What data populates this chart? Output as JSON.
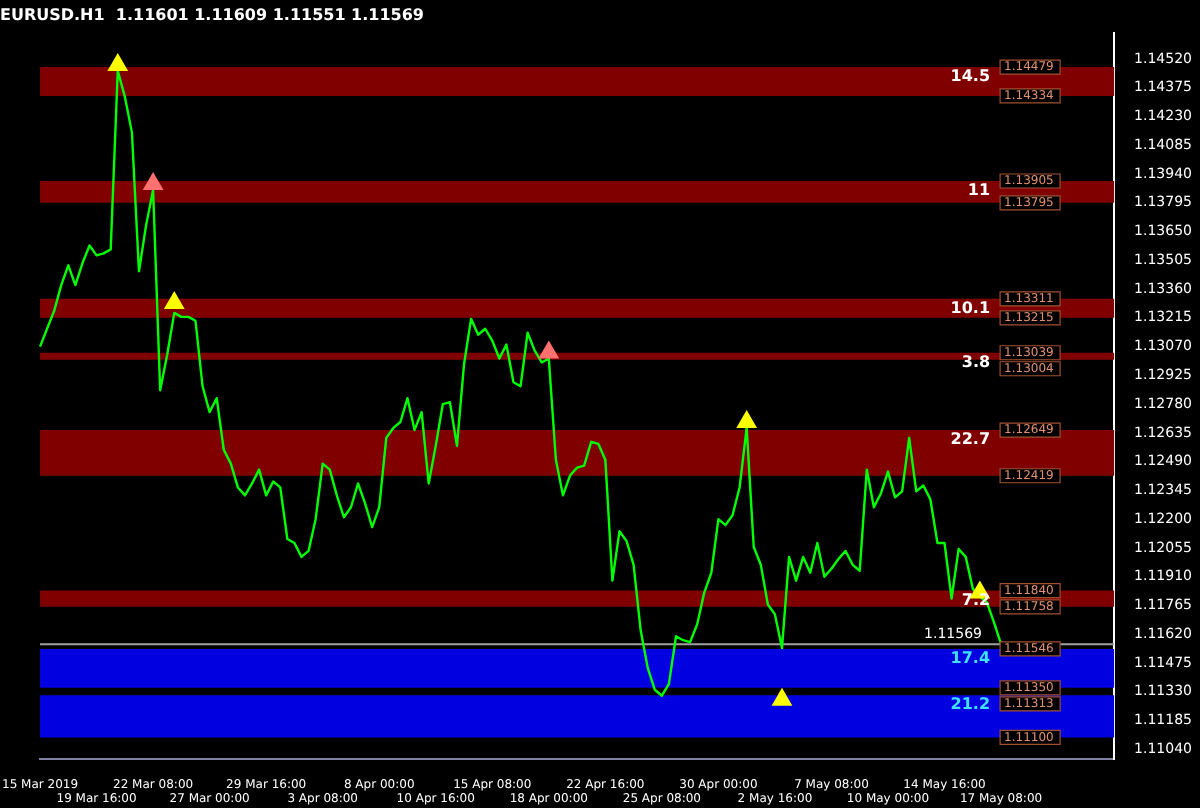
{
  "chart_data": {
    "type": "line",
    "title": "EURUSD.H1  1.11601 1.11609 1.11551 1.11569",
    "grid": false,
    "legend": false,
    "marker": "none",
    "line_style": "solid",
    "categories": [
      "15 Mar 2019",
      null,
      null,
      null,
      null,
      null,
      null,
      null,
      "19 Mar 16:00",
      null,
      null,
      null,
      null,
      null,
      null,
      null,
      "22 Mar 08:00",
      null,
      null,
      null,
      null,
      null,
      null,
      null,
      "27 Mar 00:00",
      null,
      null,
      null,
      null,
      null,
      null,
      null,
      "29 Mar 16:00",
      null,
      null,
      null,
      null,
      null,
      null,
      null,
      "3 Apr 08:00",
      null,
      null,
      null,
      null,
      null,
      null,
      null,
      "8 Apr 00:00",
      null,
      null,
      null,
      null,
      null,
      null,
      null,
      "10 Apr 16:00",
      null,
      null,
      null,
      null,
      null,
      null,
      null,
      "15 Apr 08:00",
      null,
      null,
      null,
      null,
      null,
      null,
      null,
      "18 Apr 00:00",
      null,
      null,
      null,
      null,
      null,
      null,
      null,
      "22 Apr 16:00",
      null,
      null,
      null,
      null,
      null,
      null,
      null,
      "25 Apr 08:00",
      null,
      null,
      null,
      null,
      null,
      null,
      null,
      "30 Apr 00:00",
      null,
      null,
      null,
      null,
      null,
      null,
      null,
      "2 May 16:00",
      null,
      null,
      null,
      null,
      null,
      null,
      null,
      "7 May 08:00",
      null,
      null,
      null,
      null,
      null,
      null,
      null,
      "10 May 00:00",
      null,
      null,
      null,
      null,
      null,
      null,
      null,
      "14 May 16:00",
      null,
      null,
      null,
      null,
      null,
      null,
      null,
      "17 May 08:00",
      null,
      null,
      null,
      null,
      null,
      null,
      null,
      null,
      null,
      null,
      null,
      null,
      null,
      null,
      null,
      null
    ],
    "ylim": [
      1.1099,
      1.1465
    ],
    "yticks": [
      {
        "value": 1.1104,
        "label": "1.11040"
      },
      {
        "value": 1.11185,
        "label": "1.11185"
      },
      {
        "value": 1.1133,
        "label": "1.11330"
      },
      {
        "value": 1.11475,
        "label": "1.11475"
      },
      {
        "value": 1.1162,
        "label": "1.11620"
      },
      {
        "value": 1.11765,
        "label": "1.11765"
      },
      {
        "value": 1.1191,
        "label": "1.11910"
      },
      {
        "value": 1.12055,
        "label": "1.12055"
      },
      {
        "value": 1.122,
        "label": "1.12200"
      },
      {
        "value": 1.12345,
        "label": "1.12345"
      },
      {
        "value": 1.1249,
        "label": "1.12490"
      },
      {
        "value": 1.12635,
        "label": "1.12635"
      },
      {
        "value": 1.1278,
        "label": "1.12780"
      },
      {
        "value": 1.12925,
        "label": "1.12925"
      },
      {
        "value": 1.1307,
        "label": "1.13070"
      },
      {
        "value": 1.13215,
        "label": "1.13215"
      },
      {
        "value": 1.1336,
        "label": "1.13360"
      },
      {
        "value": 1.13505,
        "label": "1.13505"
      },
      {
        "value": 1.1365,
        "label": "1.13650"
      },
      {
        "value": 1.13795,
        "label": "1.13795"
      },
      {
        "value": 1.1394,
        "label": "1.13940"
      },
      {
        "value": 1.14085,
        "label": "1.14085"
      },
      {
        "value": 1.1423,
        "label": "1.14230"
      },
      {
        "value": 1.14375,
        "label": "1.14375"
      },
      {
        "value": 1.1452,
        "label": "1.14520"
      }
    ],
    "bands": [
      {
        "axis": "y",
        "from": 1.14334,
        "to": 1.14479,
        "label": "14.5",
        "color": "#800000"
      },
      {
        "axis": "y",
        "from": 1.13795,
        "to": 1.13905,
        "label": "11",
        "color": "#800000"
      },
      {
        "axis": "y",
        "from": 1.13215,
        "to": 1.13311,
        "label": "10.1",
        "color": "#800000"
      },
      {
        "axis": "y",
        "from": 1.13004,
        "to": 1.13039,
        "label": "3.8",
        "color": "#800000"
      },
      {
        "axis": "y",
        "from": 1.12419,
        "to": 1.12649,
        "label": "22.7",
        "color": "#800000"
      },
      {
        "axis": "y",
        "from": 1.11758,
        "to": 1.1184,
        "label": "7.2",
        "color": "#800000"
      },
      {
        "axis": "y",
        "from": 1.1135,
        "to": 1.11546,
        "label": "17.4",
        "color": "#0000e0"
      },
      {
        "axis": "y",
        "from": 1.111,
        "to": 1.11313,
        "label": "21.2",
        "color": "#0000e0"
      }
    ],
    "ref_lines": [
      {
        "axis": "y",
        "value": 1.11569,
        "label": "1.11569",
        "color": "#a0a0a0"
      }
    ],
    "annotations": [
      {
        "text": "1.14479",
        "y": 1.14479
      },
      {
        "text": "1.14334",
        "y": 1.14334
      },
      {
        "text": "1.13905",
        "y": 1.13905
      },
      {
        "text": "1.13795",
        "y": 1.13795
      },
      {
        "text": "1.13311",
        "y": 1.13311
      },
      {
        "text": "1.13215",
        "y": 1.13215
      },
      {
        "text": "1.13039",
        "y": 1.13039
      },
      {
        "text": "1.13004",
        "y": 1.13004
      },
      {
        "text": "1.12649",
        "y": 1.12649
      },
      {
        "text": "1.12419",
        "y": 1.12419
      },
      {
        "text": "1.11840",
        "y": 1.1184
      },
      {
        "text": "1.11758",
        "y": 1.11758
      },
      {
        "text": "1.11546",
        "y": 1.11546
      },
      {
        "text": "1.11350",
        "y": 1.1135
      },
      {
        "text": "1.11313",
        "y": 1.11313
      },
      {
        "text": "1.11100",
        "y": 1.111
      }
    ],
    "series": [
      {
        "color": "#00ff00",
        "values": [
          1.1307,
          1.1316,
          1.1325,
          1.1338,
          1.1348,
          1.1338,
          1.1349,
          1.1358,
          1.1353,
          1.1354,
          1.1356,
          1.1446,
          1.1433,
          1.1415,
          1.1345,
          1.1368,
          1.1386,
          1.1285,
          1.1303,
          1.1324,
          1.1322,
          1.1322,
          1.132,
          1.1287,
          1.1274,
          1.1281,
          1.1255,
          1.1248,
          1.1236,
          1.1232,
          1.1238,
          1.1245,
          1.1232,
          1.1239,
          1.1236,
          1.121,
          1.1208,
          1.1201,
          1.1204,
          1.122,
          1.1248,
          1.1245,
          1.1232,
          1.1221,
          1.1226,
          1.1238,
          1.1228,
          1.1216,
          1.1226,
          1.1261,
          1.1266,
          1.1269,
          1.1281,
          1.1265,
          1.1274,
          1.1238,
          1.1257,
          1.1278,
          1.1279,
          1.1257,
          1.1298,
          1.1321,
          1.1313,
          1.1316,
          1.131,
          1.1301,
          1.1308,
          1.1289,
          1.1287,
          1.1314,
          1.1305,
          1.1299,
          1.1301,
          1.125,
          1.1232,
          1.1242,
          1.1246,
          1.1247,
          1.1259,
          1.1258,
          1.125,
          1.1189,
          1.1214,
          1.1209,
          1.1197,
          1.1164,
          1.1145,
          1.1134,
          1.1131,
          1.1137,
          1.1161,
          1.1159,
          1.1158,
          1.1167,
          1.1183,
          1.1193,
          1.122,
          1.1217,
          1.1222,
          1.1236,
          1.1266,
          1.1206,
          1.1197,
          1.1177,
          1.1172,
          1.1155,
          1.1201,
          1.1189,
          1.1201,
          1.1193,
          1.1208,
          1.1191,
          1.1195,
          1.12,
          1.1204,
          1.1197,
          1.1194,
          1.1245,
          1.1226,
          1.1233,
          1.1244,
          1.1231,
          1.1234,
          1.1261,
          1.1234,
          1.1237,
          1.123,
          1.1208,
          1.1208,
          1.118,
          1.1205,
          1.1201,
          1.1185,
          1.1181,
          1.1178,
          1.1168,
          1.1157,
          null,
          null,
          null,
          null,
          null,
          null,
          null,
          null,
          null,
          null,
          null,
          null,
          null,
          null,
          null,
          null
        ]
      },
      {
        "type": "scatter",
        "color": "#ffff00",
        "marker": "triangle",
        "values": [
          null,
          null,
          null,
          null,
          null,
          null,
          null,
          null,
          null,
          null,
          null,
          1.1449,
          null,
          null,
          null,
          null,
          null,
          null,
          null,
          1.1329,
          null,
          null,
          null,
          null,
          null,
          null,
          null,
          null,
          null,
          null,
          null,
          null,
          null,
          null,
          null,
          null,
          null,
          null,
          null,
          null,
          null,
          null,
          null,
          null,
          null,
          null,
          null,
          null,
          null,
          null,
          null,
          null,
          null,
          null,
          null,
          null,
          null,
          null,
          null,
          null,
          null,
          null,
          null,
          null,
          null,
          null,
          null,
          null,
          null,
          null,
          null,
          null,
          null,
          null,
          null,
          null,
          null,
          null,
          null,
          null,
          null,
          null,
          null,
          null,
          null,
          null,
          null,
          null,
          null,
          null,
          null,
          null,
          null,
          null,
          null,
          null,
          null,
          null,
          null,
          null,
          1.1269,
          null,
          null,
          null,
          null,
          1.1129,
          null,
          null,
          null,
          null,
          null,
          null,
          null,
          null,
          null,
          null,
          null,
          null,
          null,
          null,
          null,
          null,
          null,
          null,
          null,
          null,
          null,
          null,
          null,
          null,
          null,
          null,
          null,
          1.1183,
          null,
          null,
          null,
          null,
          null,
          null,
          null,
          null,
          null,
          null,
          null,
          null,
          null,
          null,
          null,
          null,
          null,
          null,
          null
        ]
      },
      {
        "type": "scatter",
        "color": "#ff7070",
        "marker": "triangle",
        "values": [
          null,
          null,
          null,
          null,
          null,
          null,
          null,
          null,
          null,
          null,
          null,
          null,
          null,
          null,
          null,
          null,
          1.1389,
          null,
          null,
          null,
          null,
          null,
          null,
          null,
          null,
          null,
          null,
          null,
          null,
          null,
          null,
          null,
          null,
          null,
          null,
          null,
          null,
          null,
          null,
          null,
          null,
          null,
          null,
          null,
          null,
          null,
          null,
          null,
          null,
          null,
          null,
          null,
          null,
          null,
          null,
          null,
          null,
          null,
          null,
          null,
          null,
          null,
          null,
          null,
          null,
          null,
          null,
          null,
          null,
          null,
          null,
          null,
          1.1304,
          null,
          null,
          null,
          null,
          null,
          null,
          null,
          null,
          null,
          null,
          null,
          null,
          null,
          null,
          null,
          null,
          null,
          null,
          null,
          null,
          null,
          null,
          null,
          null,
          null,
          null,
          null,
          null,
          null,
          null,
          null,
          null,
          null,
          null,
          null,
          null,
          null,
          null,
          null,
          null,
          null,
          null,
          null,
          null,
          null,
          null,
          null,
          null,
          null,
          null,
          null,
          null,
          null,
          null,
          null,
          null,
          null,
          null,
          null,
          null,
          null,
          null,
          null,
          null,
          null,
          null,
          null,
          null,
          null,
          null,
          null,
          null,
          null,
          null,
          null,
          null,
          null,
          null,
          null,
          null
        ]
      }
    ]
  }
}
